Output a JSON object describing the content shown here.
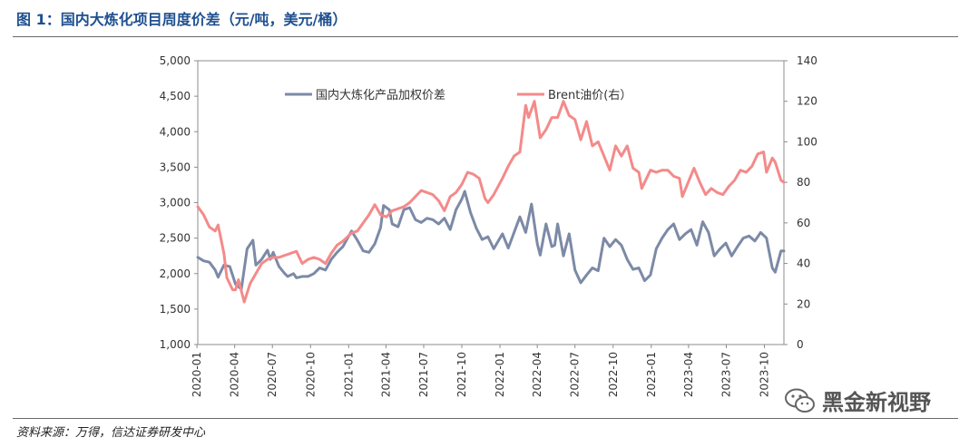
{
  "header": {
    "title": "图 1：国内大炼化项目周度价差（元/吨，美元/桶）"
  },
  "footer": {
    "source": "资料来源：万得，信达证券研发中心"
  },
  "watermark": {
    "text": "黑金新视野",
    "icon": "wechat-icon"
  },
  "chart_data": {
    "type": "line",
    "x_range": [
      "2020-01-03",
      "2023-11-17"
    ],
    "x_ticks": [
      "2020-01",
      "2020-04",
      "2020-07",
      "2020-10",
      "2021-01",
      "2021-04",
      "2021-07",
      "2021-10",
      "2022-01",
      "2022-04",
      "2022-07",
      "2022-10",
      "2023-01",
      "2023-04",
      "2023-07",
      "2023-10"
    ],
    "y_left": {
      "min": 1000,
      "max": 5000,
      "step": 500,
      "ticks": [
        "1,000",
        "1,500",
        "2,000",
        "2,500",
        "3,000",
        "3,500",
        "4,000",
        "4,500",
        "5,000"
      ]
    },
    "y_right": {
      "min": 0,
      "max": 140,
      "step": 20,
      "ticks": [
        "0",
        "20",
        "40",
        "60",
        "80",
        "100",
        "120",
        "140"
      ]
    },
    "colors": {
      "spread": "#7c8aa6",
      "brent": "#f48a8a"
    },
    "legend": {
      "position": "top"
    },
    "series": [
      {
        "name": "国内大炼化产品加权价差",
        "axis": "left",
        "points": [
          [
            "2020-01-03",
            2230
          ],
          [
            "2020-01-17",
            2180
          ],
          [
            "2020-01-31",
            2160
          ],
          [
            "2020-02-14",
            2050
          ],
          [
            "2020-02-21",
            1950
          ],
          [
            "2020-03-06",
            2120
          ],
          [
            "2020-03-20",
            2100
          ],
          [
            "2020-04-03",
            1850
          ],
          [
            "2020-04-17",
            1780
          ],
          [
            "2020-05-01",
            2350
          ],
          [
            "2020-05-15",
            2470
          ],
          [
            "2020-05-22",
            2120
          ],
          [
            "2020-06-05",
            2200
          ],
          [
            "2020-06-19",
            2330
          ],
          [
            "2020-06-26",
            2200
          ],
          [
            "2020-07-03",
            2300
          ],
          [
            "2020-07-17",
            2100
          ],
          [
            "2020-07-31",
            2000
          ],
          [
            "2020-08-07",
            1960
          ],
          [
            "2020-08-21",
            2000
          ],
          [
            "2020-08-28",
            1940
          ],
          [
            "2020-09-11",
            1960
          ],
          [
            "2020-09-25",
            1960
          ],
          [
            "2020-10-09",
            2000
          ],
          [
            "2020-10-23",
            2080
          ],
          [
            "2020-11-06",
            2050
          ],
          [
            "2020-11-20",
            2200
          ],
          [
            "2020-12-04",
            2300
          ],
          [
            "2020-12-18",
            2380
          ],
          [
            "2021-01-08",
            2600
          ],
          [
            "2021-01-22",
            2470
          ],
          [
            "2021-02-05",
            2320
          ],
          [
            "2021-02-19",
            2300
          ],
          [
            "2021-03-05",
            2420
          ],
          [
            "2021-03-19",
            2650
          ],
          [
            "2021-03-26",
            2960
          ],
          [
            "2021-04-09",
            2900
          ],
          [
            "2021-04-16",
            2700
          ],
          [
            "2021-04-30",
            2660
          ],
          [
            "2021-05-14",
            2900
          ],
          [
            "2021-05-28",
            2930
          ],
          [
            "2021-06-11",
            2760
          ],
          [
            "2021-06-25",
            2720
          ],
          [
            "2021-07-09",
            2780
          ],
          [
            "2021-07-23",
            2760
          ],
          [
            "2021-08-06",
            2700
          ],
          [
            "2021-08-20",
            2780
          ],
          [
            "2021-09-03",
            2620
          ],
          [
            "2021-09-17",
            2900
          ],
          [
            "2021-10-01",
            3050
          ],
          [
            "2021-10-08",
            3160
          ],
          [
            "2021-10-22",
            2860
          ],
          [
            "2021-11-05",
            2640
          ],
          [
            "2021-11-19",
            2480
          ],
          [
            "2021-12-03",
            2520
          ],
          [
            "2021-12-17",
            2350
          ],
          [
            "2022-01-07",
            2560
          ],
          [
            "2022-01-21",
            2360
          ],
          [
            "2022-02-04",
            2580
          ],
          [
            "2022-02-18",
            2800
          ],
          [
            "2022-03-04",
            2580
          ],
          [
            "2022-03-18",
            2980
          ],
          [
            "2022-04-01",
            2420
          ],
          [
            "2022-04-08",
            2260
          ],
          [
            "2022-04-22",
            2700
          ],
          [
            "2022-05-06",
            2380
          ],
          [
            "2022-05-13",
            2400
          ],
          [
            "2022-05-20",
            2700
          ],
          [
            "2022-06-03",
            2250
          ],
          [
            "2022-06-17",
            2560
          ],
          [
            "2022-07-01",
            2050
          ],
          [
            "2022-07-15",
            1870
          ],
          [
            "2022-07-29",
            1980
          ],
          [
            "2022-08-12",
            2080
          ],
          [
            "2022-08-26",
            2040
          ],
          [
            "2022-09-09",
            2500
          ],
          [
            "2022-09-23",
            2380
          ],
          [
            "2022-10-07",
            2480
          ],
          [
            "2022-10-21",
            2400
          ],
          [
            "2022-11-04",
            2200
          ],
          [
            "2022-11-18",
            2060
          ],
          [
            "2022-12-02",
            2080
          ],
          [
            "2022-12-16",
            1900
          ],
          [
            "2022-12-30",
            1980
          ],
          [
            "2023-01-13",
            2350
          ],
          [
            "2023-01-27",
            2500
          ],
          [
            "2023-02-10",
            2620
          ],
          [
            "2023-02-24",
            2700
          ],
          [
            "2023-03-10",
            2480
          ],
          [
            "2023-03-24",
            2560
          ],
          [
            "2023-04-07",
            2620
          ],
          [
            "2023-04-21",
            2400
          ],
          [
            "2023-05-05",
            2730
          ],
          [
            "2023-05-19",
            2580
          ],
          [
            "2023-06-02",
            2250
          ],
          [
            "2023-06-16",
            2350
          ],
          [
            "2023-06-30",
            2430
          ],
          [
            "2023-07-14",
            2250
          ],
          [
            "2023-07-28",
            2380
          ],
          [
            "2023-08-11",
            2500
          ],
          [
            "2023-08-25",
            2530
          ],
          [
            "2023-09-08",
            2460
          ],
          [
            "2023-09-22",
            2580
          ],
          [
            "2023-10-06",
            2500
          ],
          [
            "2023-10-20",
            2080
          ],
          [
            "2023-10-27",
            2020
          ],
          [
            "2023-11-10",
            2320
          ],
          [
            "2023-11-17",
            2320
          ]
        ]
      },
      {
        "name": "Brent油价(右）",
        "axis": "right",
        "points": [
          [
            "2020-01-03",
            68
          ],
          [
            "2020-01-17",
            64
          ],
          [
            "2020-01-31",
            58
          ],
          [
            "2020-02-14",
            56
          ],
          [
            "2020-02-21",
            59
          ],
          [
            "2020-03-06",
            45
          ],
          [
            "2020-03-13",
            33
          ],
          [
            "2020-03-27",
            27
          ],
          [
            "2020-04-03",
            27
          ],
          [
            "2020-04-10",
            32
          ],
          [
            "2020-04-24",
            21
          ],
          [
            "2020-05-08",
            30
          ],
          [
            "2020-05-22",
            35
          ],
          [
            "2020-06-05",
            40
          ],
          [
            "2020-06-19",
            42
          ],
          [
            "2020-07-03",
            43
          ],
          [
            "2020-07-17",
            43
          ],
          [
            "2020-07-31",
            44
          ],
          [
            "2020-08-14",
            45
          ],
          [
            "2020-08-28",
            46
          ],
          [
            "2020-09-11",
            40
          ],
          [
            "2020-09-25",
            42
          ],
          [
            "2020-10-09",
            43
          ],
          [
            "2020-10-23",
            42
          ],
          [
            "2020-11-06",
            40
          ],
          [
            "2020-11-20",
            45
          ],
          [
            "2020-12-04",
            49
          ],
          [
            "2020-12-18",
            51
          ],
          [
            "2021-01-08",
            55
          ],
          [
            "2021-01-22",
            56
          ],
          [
            "2021-02-05",
            60
          ],
          [
            "2021-02-19",
            64
          ],
          [
            "2021-03-05",
            69
          ],
          [
            "2021-03-19",
            64
          ],
          [
            "2021-04-02",
            63
          ],
          [
            "2021-04-16",
            66
          ],
          [
            "2021-04-30",
            67
          ],
          [
            "2021-05-14",
            68
          ],
          [
            "2021-05-28",
            70
          ],
          [
            "2021-06-11",
            73
          ],
          [
            "2021-06-25",
            76
          ],
          [
            "2021-07-09",
            75
          ],
          [
            "2021-07-23",
            74
          ],
          [
            "2021-08-06",
            71
          ],
          [
            "2021-08-20",
            66
          ],
          [
            "2021-09-03",
            73
          ],
          [
            "2021-09-17",
            75
          ],
          [
            "2021-10-01",
            79
          ],
          [
            "2021-10-15",
            85
          ],
          [
            "2021-10-29",
            84
          ],
          [
            "2021-11-12",
            82
          ],
          [
            "2021-11-26",
            72
          ],
          [
            "2021-12-03",
            70
          ],
          [
            "2021-12-17",
            74
          ],
          [
            "2022-01-07",
            82
          ],
          [
            "2022-01-21",
            88
          ],
          [
            "2022-02-04",
            93
          ],
          [
            "2022-02-18",
            95
          ],
          [
            "2022-03-04",
            118
          ],
          [
            "2022-03-11",
            112
          ],
          [
            "2022-03-25",
            120
          ],
          [
            "2022-04-08",
            102
          ],
          [
            "2022-04-22",
            106
          ],
          [
            "2022-05-06",
            112
          ],
          [
            "2022-05-20",
            112
          ],
          [
            "2022-06-03",
            120
          ],
          [
            "2022-06-17",
            113
          ],
          [
            "2022-07-01",
            111
          ],
          [
            "2022-07-15",
            101
          ],
          [
            "2022-07-29",
            110
          ],
          [
            "2022-08-12",
            98
          ],
          [
            "2022-08-26",
            100
          ],
          [
            "2022-09-09",
            93
          ],
          [
            "2022-09-23",
            86
          ],
          [
            "2022-10-07",
            98
          ],
          [
            "2022-10-21",
            93
          ],
          [
            "2022-11-04",
            98
          ],
          [
            "2022-11-18",
            87
          ],
          [
            "2022-12-02",
            85
          ],
          [
            "2022-12-09",
            77
          ],
          [
            "2022-12-30",
            86
          ],
          [
            "2023-01-13",
            85
          ],
          [
            "2023-01-27",
            86
          ],
          [
            "2023-02-10",
            86
          ],
          [
            "2023-02-24",
            83
          ],
          [
            "2023-03-10",
            82
          ],
          [
            "2023-03-17",
            73
          ],
          [
            "2023-03-31",
            80
          ],
          [
            "2023-04-14",
            87
          ],
          [
            "2023-04-28",
            80
          ],
          [
            "2023-05-12",
            74
          ],
          [
            "2023-05-26",
            77
          ],
          [
            "2023-06-09",
            75
          ],
          [
            "2023-06-23",
            74
          ],
          [
            "2023-07-07",
            78
          ],
          [
            "2023-07-21",
            81
          ],
          [
            "2023-08-04",
            86
          ],
          [
            "2023-08-18",
            85
          ],
          [
            "2023-09-01",
            88
          ],
          [
            "2023-09-15",
            94
          ],
          [
            "2023-09-29",
            95
          ],
          [
            "2023-10-06",
            85
          ],
          [
            "2023-10-20",
            92
          ],
          [
            "2023-10-27",
            90
          ],
          [
            "2023-11-10",
            81
          ],
          [
            "2023-11-17",
            80
          ]
        ]
      }
    ]
  }
}
